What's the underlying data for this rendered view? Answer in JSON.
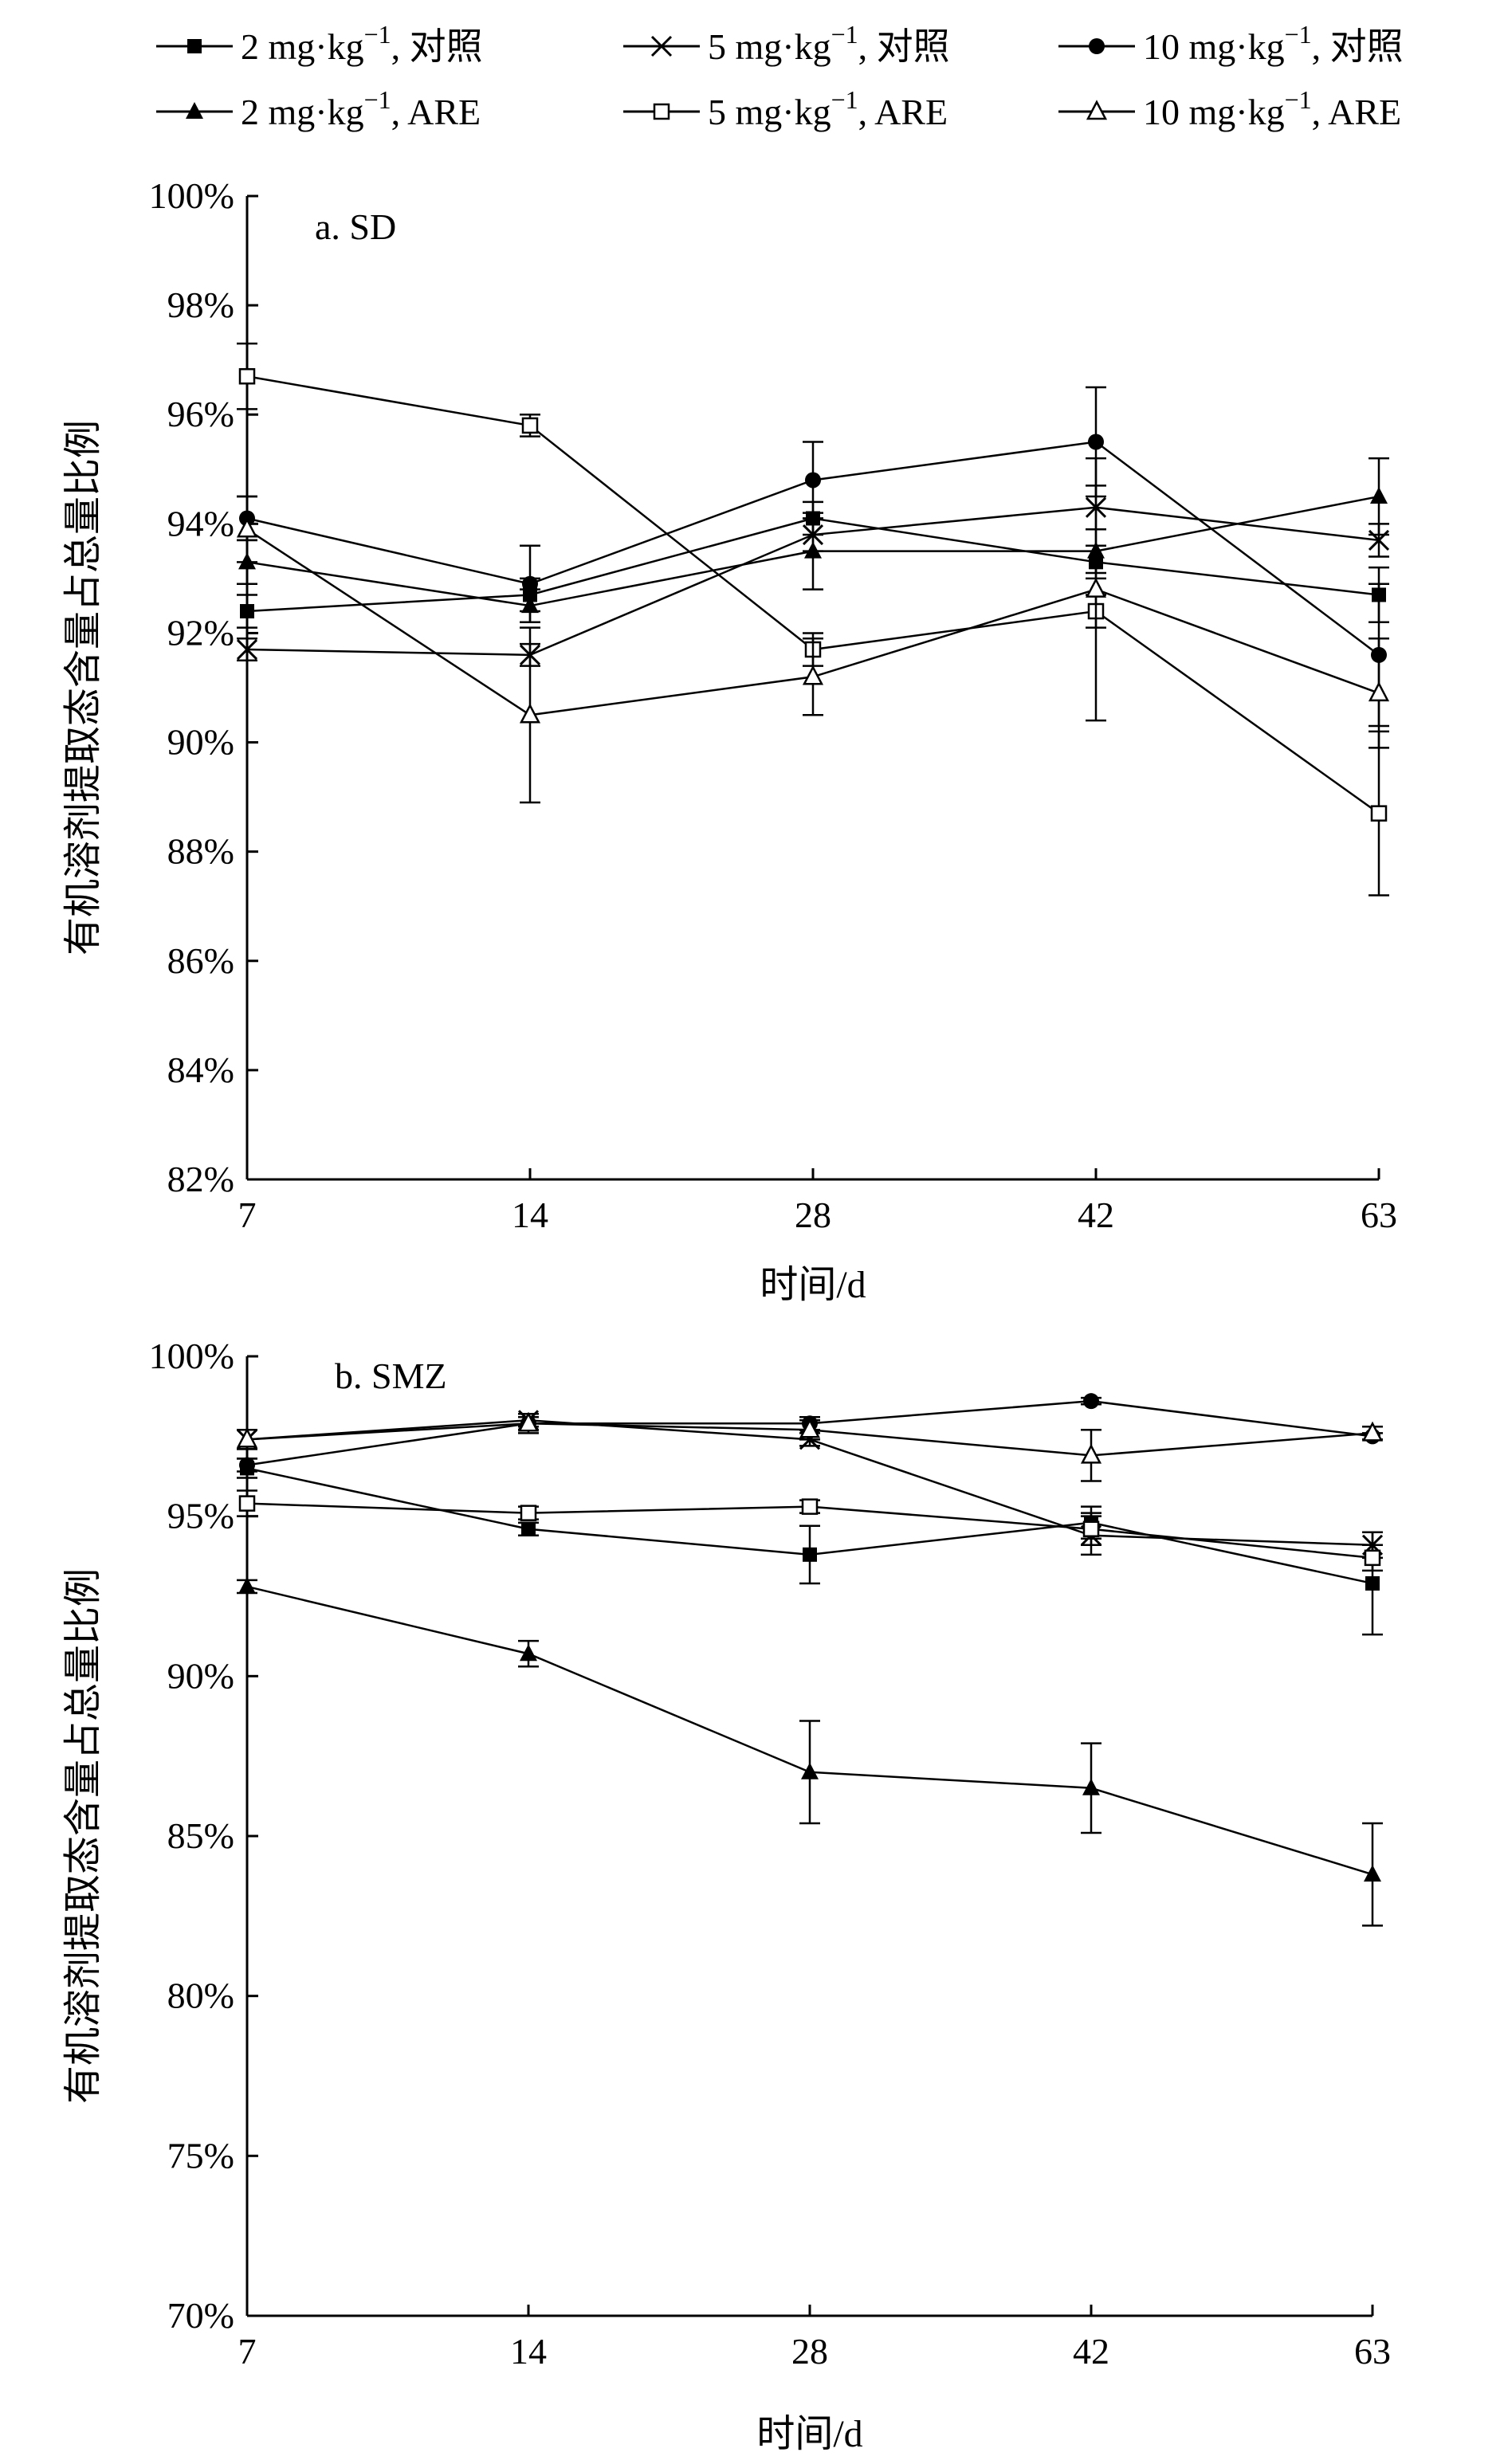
{
  "legend": [
    {
      "id": "s1",
      "label": "2 mg·kg",
      "sup": "−1",
      "suffix": ", 对照",
      "marker": "square-filled"
    },
    {
      "id": "s2",
      "label": "5 mg·kg",
      "sup": "−1",
      "suffix": ", 对照",
      "marker": "x"
    },
    {
      "id": "s3",
      "label": "10 mg·kg",
      "sup": "−1",
      "suffix": ", 对照",
      "marker": "circle-filled"
    },
    {
      "id": "s4",
      "label": "2 mg·kg",
      "sup": "−1",
      "suffix": ", ARE",
      "marker": "triangle-filled"
    },
    {
      "id": "s5",
      "label": "5 mg·kg",
      "sup": "−1",
      "suffix": ", ARE",
      "marker": "square-open"
    },
    {
      "id": "s6",
      "label": "10 mg·kg",
      "sup": "−1",
      "suffix": ", ARE",
      "marker": "triangle-open"
    }
  ],
  "chart_data": [
    {
      "type": "line",
      "title": "a. SD",
      "xlabel": "时间/d",
      "ylabel": "有机溶剂提取态含量占总量比例",
      "categories": [
        "7",
        "14",
        "28",
        "42",
        "63"
      ],
      "ylim": [
        82,
        100
      ],
      "yticks": [
        82,
        84,
        86,
        88,
        90,
        92,
        94,
        96,
        98,
        100
      ],
      "ytick_labels": [
        "82%",
        "84%",
        "86%",
        "88%",
        "90%",
        "92%",
        "94%",
        "96%",
        "98%",
        "100%"
      ],
      "series": [
        {
          "id": "s1",
          "values": [
            92.4,
            92.7,
            94.1,
            93.3,
            92.7
          ],
          "err": [
            0.3,
            0.3,
            0.3,
            0.3,
            0.5
          ]
        },
        {
          "id": "s2",
          "values": [
            91.7,
            91.6,
            93.8,
            94.3,
            93.7
          ],
          "err": [
            0.2,
            0.2,
            0.3,
            0.4,
            0.3
          ]
        },
        {
          "id": "s3",
          "values": [
            94.1,
            92.9,
            94.8,
            95.5,
            91.6
          ],
          "err": [
            0.4,
            0.7,
            0.7,
            1.0,
            1.3
          ]
        },
        {
          "id": "s4",
          "values": [
            93.3,
            92.5,
            93.5,
            93.5,
            94.5
          ],
          "err": [
            0.4,
            0.3,
            0.7,
            0.4,
            0.7
          ]
        },
        {
          "id": "s5",
          "values": [
            96.7,
            95.8,
            91.7,
            92.4,
            88.7
          ],
          "err": [
            0.6,
            0.2,
            0.3,
            0.3,
            1.5
          ]
        },
        {
          "id": "s6",
          "values": [
            93.9,
            90.5,
            91.2,
            92.8,
            90.9
          ],
          "err": [
            0.6,
            1.6,
            0.7,
            2.4,
            1.0
          ]
        }
      ]
    },
    {
      "type": "line",
      "title": "b. SMZ",
      "xlabel": "时间/d",
      "ylabel": "有机溶剂提取态含量占总量比例",
      "categories": [
        "7",
        "14",
        "28",
        "42",
        "63"
      ],
      "ylim": [
        70,
        100
      ],
      "yticks": [
        70,
        75,
        80,
        85,
        90,
        95,
        100
      ],
      "ytick_labels": [
        "70%",
        "75%",
        "80%",
        "85%",
        "90%",
        "95%",
        "100%"
      ],
      "series": [
        {
          "id": "s1",
          "values": [
            96.5,
            94.6,
            93.8,
            94.8,
            92.9
          ],
          "err": [
            0.3,
            0.2,
            0.9,
            0.5,
            1.6
          ]
        },
        {
          "id": "s2",
          "values": [
            97.4,
            98.0,
            97.4,
            94.4,
            94.1
          ],
          "err": [
            0.3,
            0.2,
            0.2,
            0.6,
            0.4
          ]
        },
        {
          "id": "s3",
          "values": [
            96.6,
            97.9,
            97.9,
            98.6,
            97.5
          ],
          "err": [
            0.2,
            0.2,
            0.2,
            0.1,
            0.1
          ]
        },
        {
          "id": "s4",
          "values": [
            92.8,
            90.7,
            87.0,
            86.5,
            83.8
          ],
          "err": [
            0.2,
            0.4,
            1.6,
            1.4,
            1.6
          ]
        },
        {
          "id": "s5",
          "values": [
            95.4,
            95.1,
            95.3,
            94.6,
            93.7
          ],
          "err": [
            0.4,
            0.2,
            0.2,
            0.5,
            0.4
          ]
        },
        {
          "id": "s6",
          "values": [
            97.4,
            97.9,
            97.7,
            96.9,
            97.6
          ],
          "err": [
            0.3,
            0.3,
            0.3,
            0.8,
            0.2
          ]
        }
      ]
    }
  ]
}
